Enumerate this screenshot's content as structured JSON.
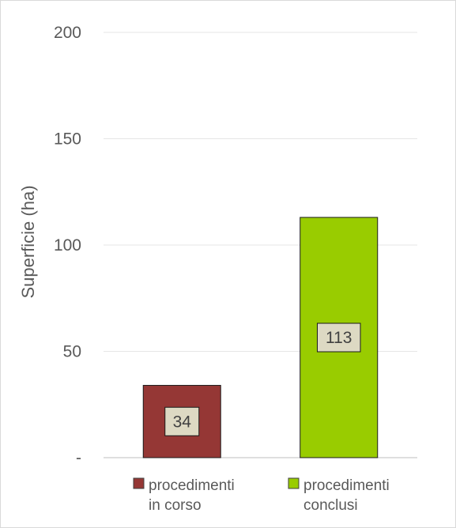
{
  "chart_data": {
    "type": "bar",
    "categories": [
      "procedimenti in corso",
      "procedimenti conclusi"
    ],
    "values": [
      34,
      113
    ],
    "data_labels": [
      "34",
      "113"
    ],
    "ylabel": "Superficie (ha)",
    "xlabel": "",
    "ylim": [
      0,
      200
    ],
    "yticks": [
      0,
      50,
      100,
      150,
      200
    ],
    "ytick_labels": [
      "-",
      "50",
      "100",
      "150",
      "200"
    ],
    "colors": [
      "#953735",
      "#99cc00"
    ],
    "data_label_bg": "#ddd9c3",
    "grid": true,
    "legend": {
      "position": "bottom",
      "entries": [
        {
          "lines": [
            "procedimenti",
            "in corso"
          ],
          "color": "#953735"
        },
        {
          "lines": [
            "procedimenti",
            "conclusi"
          ],
          "color": "#99cc00"
        }
      ]
    }
  }
}
